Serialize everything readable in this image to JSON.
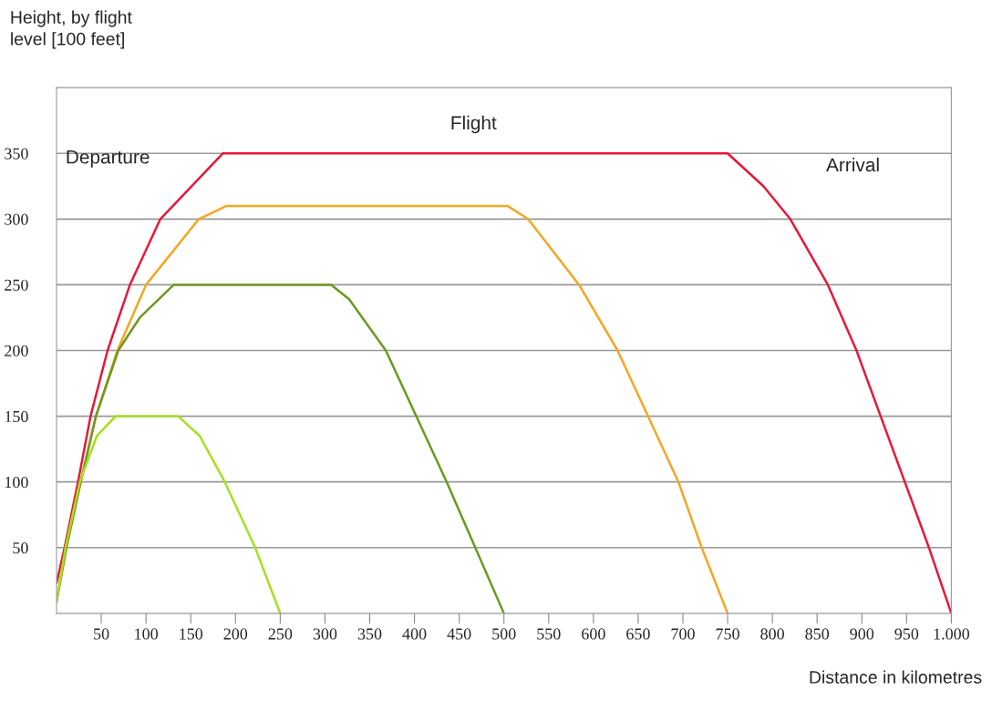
{
  "chart_data": {
    "type": "line",
    "ylabel": "Height, by flight\nlevel [100 feet]",
    "xlabel": "Distance in kilometres",
    "annotations": [
      "Flight",
      "Departure",
      "Arrival"
    ],
    "xlim": [
      0,
      1000
    ],
    "xticks": [
      50,
      100,
      150,
      200,
      250,
      300,
      350,
      400,
      450,
      500,
      550,
      600,
      650,
      700,
      750,
      800,
      850,
      900,
      950,
      {
        "value": 1000,
        "label": "1.000"
      }
    ],
    "ylim": [
      0,
      400
    ],
    "yticks": [
      50,
      100,
      150,
      200,
      250,
      300,
      350
    ],
    "grid": "y",
    "legend": false,
    "marker": "none",
    "line_style": "solid",
    "series": [
      {
        "color": "#e8173a",
        "x": [
          0,
          9,
          24,
          38,
          57,
          82,
          116,
          186,
          750,
          790,
          820,
          862,
          894,
          921,
          948,
          975,
          1000
        ],
        "values": [
          23,
          50,
          100,
          150,
          200,
          250,
          300,
          350,
          350,
          325,
          300,
          250,
          200,
          150,
          100,
          50,
          0
        ]
      },
      {
        "color": "#f5a623",
        "x": [
          0,
          11,
          27,
          44,
          68,
          100,
          159,
          190,
          504,
          527,
          584,
          627,
          661,
          695,
          721,
          750
        ],
        "values": [
          9,
          50,
          100,
          150,
          200,
          250,
          300,
          310,
          310,
          300,
          250,
          200,
          150,
          100,
          50,
          0
        ]
      },
      {
        "color": "#6b9a1e",
        "x": [
          0,
          11,
          27,
          44,
          69,
          93,
          131,
          307,
          327,
          368,
          402,
          436,
          468,
          500
        ],
        "values": [
          9,
          50,
          100,
          150,
          200,
          225,
          250,
          250,
          239,
          200,
          150,
          100,
          50,
          0
        ]
      },
      {
        "color": "#a6e01e",
        "x": [
          0,
          10,
          26,
          45,
          66,
          136,
          160,
          188,
          222,
          250
        ],
        "values": [
          9,
          50,
          100,
          135,
          150,
          150,
          135,
          100,
          50,
          0
        ]
      }
    ]
  }
}
